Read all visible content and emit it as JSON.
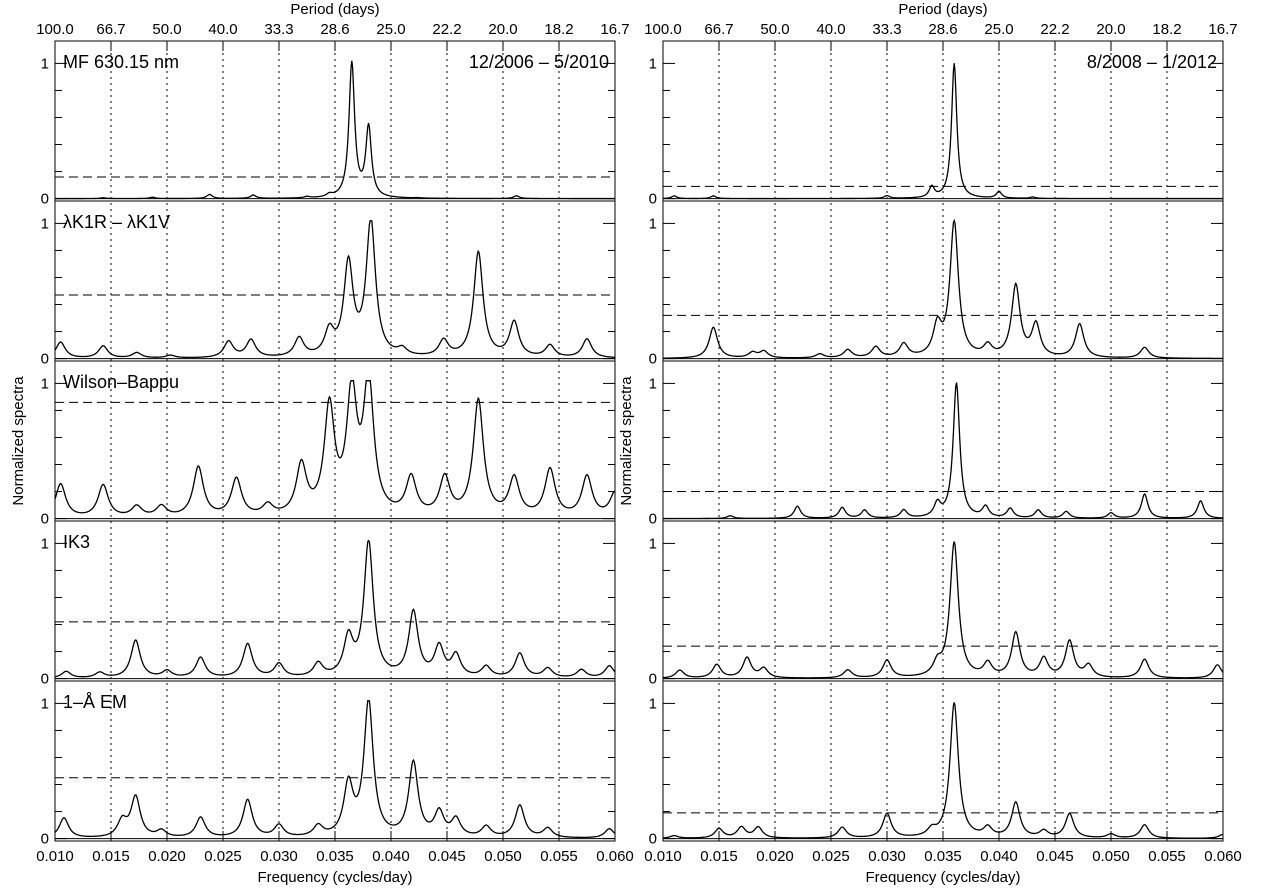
{
  "figure": {
    "top_axis_label": "Period (days)",
    "bottom_axis_label": "Frequency (cycles/day)",
    "y_axis_label": "Normalized spectra",
    "x_range": [
      0.01,
      0.06
    ],
    "x_ticks": [
      "0.010",
      "0.015",
      "0.020",
      "0.025",
      "0.030",
      "0.035",
      "0.040",
      "0.045",
      "0.050",
      "0.055",
      "0.060"
    ],
    "period_ticks": [
      "100.0",
      "66.7",
      "50.0",
      "40.0",
      "33.3",
      "28.6",
      "25.0",
      "22.2",
      "20.0",
      "18.2",
      "16.7"
    ],
    "y_tick_labels": [
      "0",
      "1"
    ],
    "vertical_dotted_gridlines": true
  },
  "chart_data": [
    {
      "type": "line",
      "column": "left",
      "date_range": "12/2006 – 5/2010",
      "panels": [
        {
          "label": "MF 630.15 nm",
          "threshold": 0.16,
          "peaks": [
            [
              0.0143,
              0.006
            ],
            [
              0.0187,
              0.01
            ],
            [
              0.0238,
              0.03
            ],
            [
              0.0277,
              0.025
            ],
            [
              0.0325,
              0.01
            ],
            [
              0.0345,
              0.02
            ],
            [
              0.0365,
              1.0
            ],
            [
              0.038,
              0.52
            ],
            [
              0.0423,
              0.003
            ],
            [
              0.0512,
              0.02
            ]
          ],
          "width": 0.0003,
          "baseline": 0.0
        },
        {
          "label": "λK1R – λK1V",
          "threshold": 0.47,
          "peaks": [
            [
              0.0105,
              0.12
            ],
            [
              0.0143,
              0.09
            ],
            [
              0.0173,
              0.04
            ],
            [
              0.0203,
              0.02
            ],
            [
              0.0255,
              0.12
            ],
            [
              0.0275,
              0.13
            ],
            [
              0.0318,
              0.14
            ],
            [
              0.0345,
              0.18
            ],
            [
              0.0362,
              0.68
            ],
            [
              0.0382,
              1.0
            ],
            [
              0.041,
              0.05
            ],
            [
              0.0447,
              0.12
            ],
            [
              0.0478,
              0.78
            ],
            [
              0.051,
              0.26
            ],
            [
              0.0542,
              0.09
            ],
            [
              0.0575,
              0.14
            ]
          ],
          "width": 0.0005,
          "baseline": 0.0
        },
        {
          "label": "Wilson–Bappu",
          "threshold": 0.86,
          "peaks": [
            [
              0.0105,
              0.25
            ],
            [
              0.0143,
              0.24
            ],
            [
              0.0173,
              0.08
            ],
            [
              0.0195,
              0.08
            ],
            [
              0.0228,
              0.37
            ],
            [
              0.0262,
              0.28
            ],
            [
              0.029,
              0.08
            ],
            [
              0.032,
              0.37
            ],
            [
              0.0345,
              0.79
            ],
            [
              0.0365,
              0.88
            ],
            [
              0.038,
              0.98
            ],
            [
              0.0418,
              0.28
            ],
            [
              0.0448,
              0.28
            ],
            [
              0.0478,
              0.86
            ],
            [
              0.051,
              0.28
            ],
            [
              0.0542,
              0.35
            ],
            [
              0.0575,
              0.3
            ],
            [
              0.06,
              0.18
            ]
          ],
          "width": 0.00055,
          "baseline": 0.0
        },
        {
          "label": "IK3",
          "threshold": 0.42,
          "peaks": [
            [
              0.011,
              0.05
            ],
            [
              0.014,
              0.04
            ],
            [
              0.0172,
              0.28
            ],
            [
              0.02,
              0.05
            ],
            [
              0.023,
              0.15
            ],
            [
              0.0272,
              0.25
            ],
            [
              0.03,
              0.1
            ],
            [
              0.0335,
              0.1
            ],
            [
              0.0362,
              0.28
            ],
            [
              0.038,
              1.0
            ],
            [
              0.042,
              0.48
            ],
            [
              0.0443,
              0.22
            ],
            [
              0.0458,
              0.16
            ],
            [
              0.0485,
              0.08
            ],
            [
              0.0515,
              0.18
            ],
            [
              0.054,
              0.07
            ],
            [
              0.057,
              0.06
            ],
            [
              0.0595,
              0.09
            ]
          ],
          "width": 0.0005,
          "baseline": 0.0
        },
        {
          "label": "1–Å EM",
          "threshold": 0.45,
          "peaks": [
            [
              0.0108,
              0.15
            ],
            [
              0.016,
              0.12
            ],
            [
              0.0172,
              0.3
            ],
            [
              0.0195,
              0.05
            ],
            [
              0.023,
              0.15
            ],
            [
              0.0272,
              0.28
            ],
            [
              0.03,
              0.09
            ],
            [
              0.0335,
              0.08
            ],
            [
              0.0362,
              0.38
            ],
            [
              0.038,
              1.0
            ],
            [
              0.042,
              0.55
            ],
            [
              0.0443,
              0.18
            ],
            [
              0.0458,
              0.13
            ],
            [
              0.0485,
              0.08
            ],
            [
              0.0515,
              0.24
            ],
            [
              0.054,
              0.07
            ],
            [
              0.0595,
              0.07
            ]
          ],
          "width": 0.0005,
          "baseline": 0.0
        }
      ]
    },
    {
      "type": "line",
      "column": "right",
      "date_range": "8/2008 – 1/2012",
      "panels": [
        {
          "label": "",
          "threshold": 0.09,
          "peaks": [
            [
              0.011,
              0.02
            ],
            [
              0.0145,
              0.02
            ],
            [
              0.03,
              0.02
            ],
            [
              0.034,
              0.08
            ],
            [
              0.036,
              1.0
            ],
            [
              0.04,
              0.05
            ],
            [
              0.043,
              0.01
            ]
          ],
          "width": 0.00028,
          "baseline": 0.0
        },
        {
          "label": "",
          "threshold": 0.32,
          "peaks": [
            [
              0.0145,
              0.23
            ],
            [
              0.018,
              0.04
            ],
            [
              0.019,
              0.05
            ],
            [
              0.024,
              0.03
            ],
            [
              0.0265,
              0.06
            ],
            [
              0.029,
              0.08
            ],
            [
              0.0315,
              0.1
            ],
            [
              0.0345,
              0.22
            ],
            [
              0.036,
              1.0
            ],
            [
              0.039,
              0.08
            ],
            [
              0.0415,
              0.53
            ],
            [
              0.0433,
              0.24
            ],
            [
              0.0472,
              0.25
            ],
            [
              0.053,
              0.08
            ]
          ],
          "width": 0.00045,
          "baseline": 0.0
        },
        {
          "label": "",
          "threshold": 0.2,
          "peaks": [
            [
              0.016,
              0.02
            ],
            [
              0.022,
              0.09
            ],
            [
              0.026,
              0.08
            ],
            [
              0.028,
              0.06
            ],
            [
              0.0315,
              0.06
            ],
            [
              0.0345,
              0.1
            ],
            [
              0.0362,
              1.0
            ],
            [
              0.0388,
              0.08
            ],
            [
              0.041,
              0.07
            ],
            [
              0.0435,
              0.06
            ],
            [
              0.046,
              0.05
            ],
            [
              0.05,
              0.04
            ],
            [
              0.053,
              0.18
            ],
            [
              0.058,
              0.13
            ]
          ],
          "width": 0.00035,
          "baseline": 0.0
        },
        {
          "label": "",
          "threshold": 0.24,
          "peaks": [
            [
              0.0115,
              0.06
            ],
            [
              0.0148,
              0.1
            ],
            [
              0.0175,
              0.15
            ],
            [
              0.019,
              0.07
            ],
            [
              0.0265,
              0.06
            ],
            [
              0.03,
              0.13
            ],
            [
              0.0345,
              0.09
            ],
            [
              0.036,
              1.0
            ],
            [
              0.039,
              0.1
            ],
            [
              0.0415,
              0.33
            ],
            [
              0.044,
              0.14
            ],
            [
              0.0463,
              0.27
            ],
            [
              0.048,
              0.09
            ],
            [
              0.053,
              0.14
            ],
            [
              0.0595,
              0.1
            ]
          ],
          "width": 0.00045,
          "baseline": 0.0
        },
        {
          "label": "",
          "threshold": 0.19,
          "peaks": [
            [
              0.011,
              0.02
            ],
            [
              0.015,
              0.07
            ],
            [
              0.017,
              0.08
            ],
            [
              0.0185,
              0.08
            ],
            [
              0.026,
              0.08
            ],
            [
              0.03,
              0.18
            ],
            [
              0.034,
              0.05
            ],
            [
              0.036,
              1.0
            ],
            [
              0.039,
              0.07
            ],
            [
              0.0415,
              0.26
            ],
            [
              0.044,
              0.05
            ],
            [
              0.0463,
              0.18
            ],
            [
              0.05,
              0.03
            ],
            [
              0.053,
              0.1
            ],
            [
              0.06,
              0.03
            ]
          ],
          "width": 0.00045,
          "baseline": 0.0
        }
      ]
    }
  ]
}
